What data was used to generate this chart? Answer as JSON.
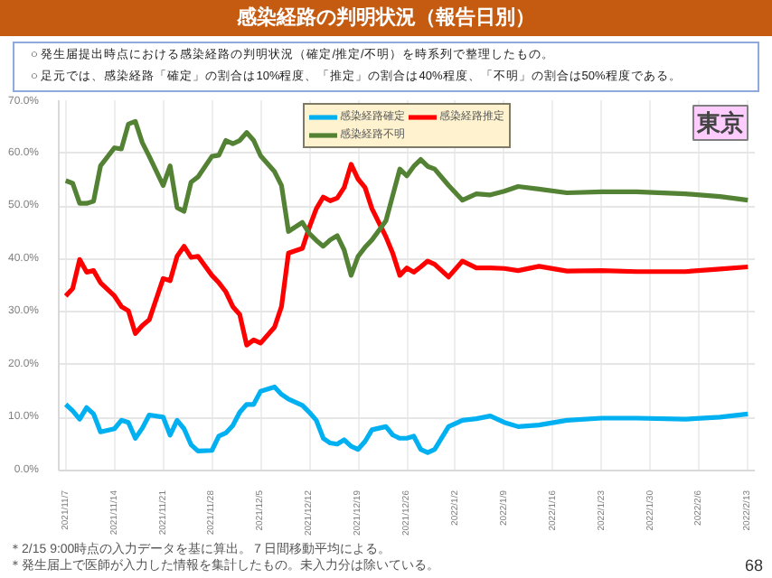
{
  "chart_data": {
    "type": "line",
    "title": "感染経路の判明状況（報告日別）",
    "annotations": [
      "○ 発生届提出時点における感染経路の判明状況（確定/推定/不明）を時系列で整理したもの。",
      "○ 足元では、感染経路「確定」の割合は10%程度、「推定」の割合は40%程度、「不明」の割合は50%程度である。",
      "東京",
      "＊2/15 9:00時点の入力データを基に算出。７日間移動平均による。",
      "＊発生届上で医師が入力した情報を集計したもの。未入力分は除いている。",
      "68"
    ],
    "x": [
      "2021-11-07",
      "2021-11-08",
      "2021-11-09",
      "2021-11-10",
      "2021-11-11",
      "2021-11-12",
      "2021-11-14",
      "2021-11-15",
      "2021-11-16",
      "2021-11-17",
      "2021-11-18",
      "2021-11-19",
      "2021-11-21",
      "2021-11-22",
      "2021-11-23",
      "2021-11-24",
      "2021-11-25",
      "2021-11-26",
      "2021-11-28",
      "2021-11-29",
      "2021-11-30",
      "2021-12-01",
      "2021-12-02",
      "2021-12-03",
      "2021-12-04",
      "2021-12-05",
      "2021-12-07",
      "2021-12-08",
      "2021-12-09",
      "2021-12-11",
      "2021-12-12",
      "2021-12-13",
      "2021-12-14",
      "2021-12-15",
      "2021-12-16",
      "2021-12-17",
      "2021-12-18",
      "2021-12-19",
      "2021-12-20",
      "2021-12-21",
      "2021-12-23",
      "2021-12-24",
      "2021-12-25",
      "2021-12-26",
      "2021-12-27",
      "2021-12-28",
      "2021-12-29",
      "2021-12-30",
      "2022-01-01",
      "2022-01-03",
      "2022-01-05",
      "2022-01-07",
      "2022-01-09",
      "2022-01-11",
      "2022-01-14",
      "2022-01-18",
      "2022-01-23",
      "2022-01-28",
      "2022-02-04",
      "2022-02-09",
      "2022-02-13"
    ],
    "series": [
      {
        "name": "感染経路確定",
        "color": "#00b0f0",
        "values": [
          12.5,
          11.3,
          9.7,
          11.9,
          10.7,
          7.3,
          7.9,
          9.5,
          9.1,
          6.1,
          8,
          10.5,
          10.1,
          6.7,
          9.5,
          7.9,
          4.9,
          3.7,
          3.8,
          6.5,
          7.1,
          8.5,
          11,
          12.5,
          12.5,
          15,
          15.8,
          14.4,
          13.5,
          12.3,
          11,
          9.5,
          6.1,
          5.2,
          5,
          5.8,
          4.6,
          4,
          5.5,
          7.7,
          8.3,
          6.7,
          6.1,
          6.1,
          6.5,
          4,
          3.4,
          4,
          8.3,
          9.5,
          9.8,
          10.3,
          9.1,
          8.3,
          8.6,
          9.5,
          9.9,
          9.9,
          9.7,
          10.1,
          10.7
        ]
      },
      {
        "name": "感染経路推定",
        "color": "#ff0000",
        "values": [
          33,
          34.4,
          39.9,
          37.5,
          37.8,
          35.5,
          33,
          31,
          30.2,
          25.9,
          27.4,
          28.5,
          36.3,
          35.9,
          40.5,
          42.4,
          40.3,
          40.5,
          36.9,
          35.5,
          33.8,
          31,
          29.5,
          23.7,
          24.7,
          24.1,
          27.1,
          31,
          41.1,
          42,
          46,
          49.5,
          51.7,
          51,
          51.5,
          53.5,
          57.9,
          55.1,
          53.5,
          49.5,
          44.2,
          41,
          36.9,
          38.3,
          37.5,
          38.5,
          39.6,
          39,
          36.6,
          39.6,
          38.3,
          38.3,
          38.2,
          37.8,
          38.6,
          37.7,
          37.8,
          37.6,
          37.6,
          38.1,
          38.5
        ]
      },
      {
        "name": "感染経路不明",
        "color": "#548235",
        "values": [
          54.8,
          54.3,
          50.5,
          50.5,
          50.9,
          57.6,
          61,
          60.8,
          65.5,
          66,
          62,
          59.4,
          53.9,
          57.6,
          49.7,
          49,
          54.5,
          55.5,
          59.4,
          59.6,
          62.4,
          61.8,
          62.4,
          63.9,
          62.4,
          59.5,
          56.5,
          53.9,
          45.2,
          46.9,
          44.8,
          43.5,
          42.4,
          43.6,
          44.4,
          41.7,
          36.9,
          40.5,
          42.2,
          43.6,
          47.2,
          52.1,
          57,
          55.7,
          57.5,
          58.8,
          57.5,
          57,
          53.9,
          51.1,
          52.3,
          52.1,
          52.8,
          53.7,
          53.2,
          52.5,
          52.7,
          52.7,
          52.3,
          51.8,
          51.1
        ]
      }
    ],
    "xlim": [
      "2021-11-06",
      "2022-02-14"
    ],
    "xticks": [
      {
        "value": "2021-11-07",
        "label": "2021/11/7"
      },
      {
        "value": "2021-11-14",
        "label": "2021/11/14"
      },
      {
        "value": "2021-11-21",
        "label": "2021/11/21"
      },
      {
        "value": "2021-11-28",
        "label": "2021/11/28"
      },
      {
        "value": "2021-12-05",
        "label": "2021/12/5"
      },
      {
        "value": "2021-12-12",
        "label": "2021/12/12"
      },
      {
        "value": "2021-12-19",
        "label": "2021/12/19"
      },
      {
        "value": "2021-12-26",
        "label": "2021/12/26"
      },
      {
        "value": "2022-01-02",
        "label": "2022/1/2"
      },
      {
        "value": "2022-01-09",
        "label": "2022/1/9"
      },
      {
        "value": "2022-01-16",
        "label": "2022/1/16"
      },
      {
        "value": "2022-01-23",
        "label": "2022/1/23"
      },
      {
        "value": "2022-01-30",
        "label": "2022/1/30"
      },
      {
        "value": "2022-02-06",
        "label": "2022/2/6"
      },
      {
        "value": "2022-02-13",
        "label": "2022/2/13"
      }
    ],
    "ylim": [
      0,
      70
    ],
    "yticks": [
      {
        "value": 0,
        "label": "0.0%"
      },
      {
        "value": 10,
        "label": "10.0%"
      },
      {
        "value": 20,
        "label": "20.0%"
      },
      {
        "value": 30,
        "label": "30.0%"
      },
      {
        "value": 40,
        "label": "40.0%"
      },
      {
        "value": 50,
        "label": "50.0%"
      },
      {
        "value": 60,
        "label": "60.0%"
      },
      {
        "value": 70,
        "label": "70.0%"
      }
    ],
    "grid": true,
    "legend": "top",
    "line_style": "solid"
  }
}
